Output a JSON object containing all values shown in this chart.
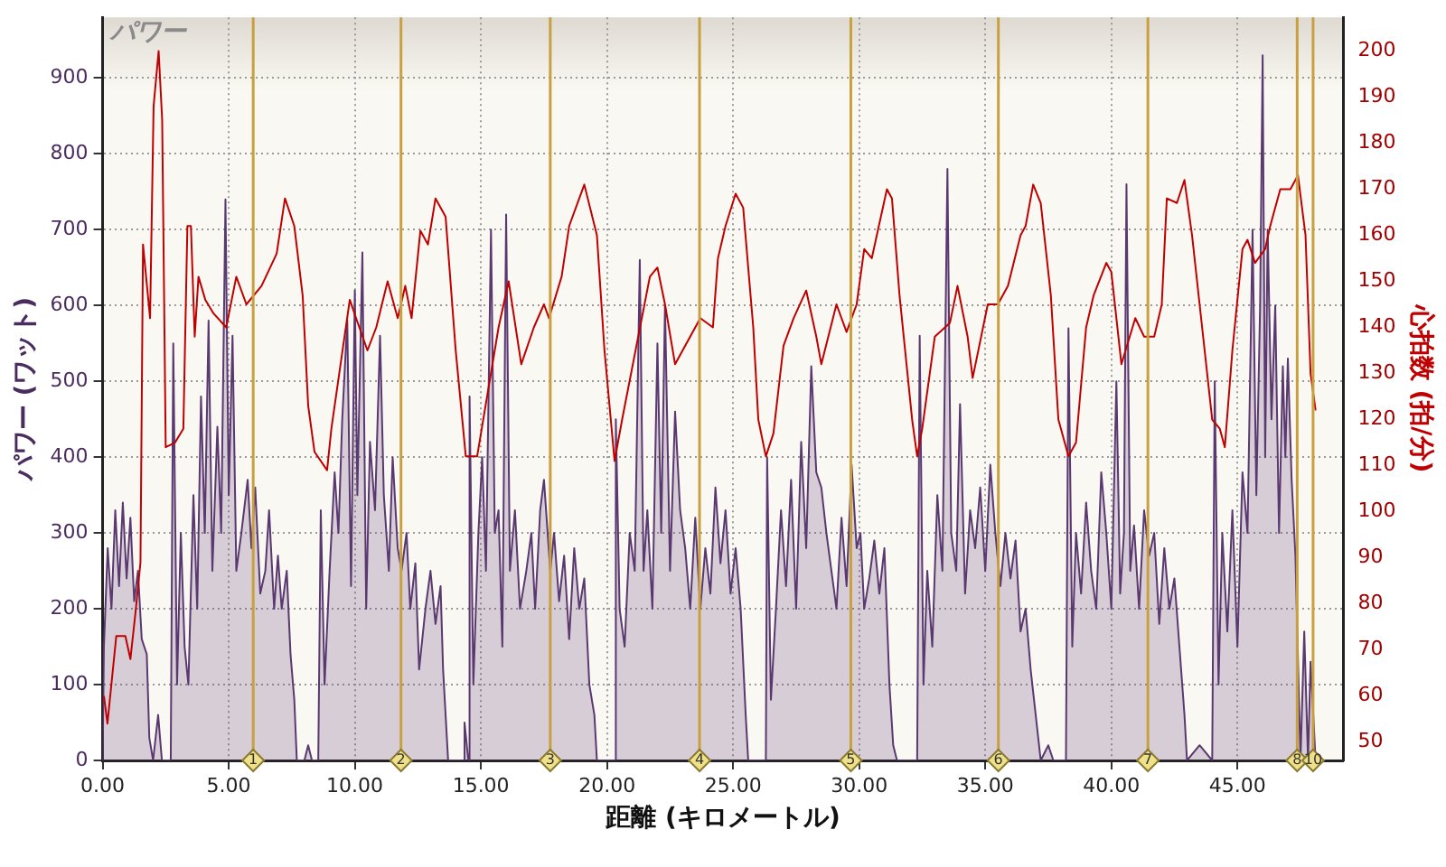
{
  "chart_data": {
    "type": "area",
    "title": "パワー",
    "xlabel": "距離 (キロメートル)",
    "ylabel": "パワー (ワット)",
    "y2label": "心拍数 (拍/分)",
    "xlim": [
      0,
      49.2
    ],
    "ylim": [
      0,
      980
    ],
    "y2lim": [
      46,
      207.3
    ],
    "xticks": [
      {
        "value": 0,
        "label": "0.00"
      },
      {
        "value": 5,
        "label": "5.00"
      },
      {
        "value": 10,
        "label": "10.00"
      },
      {
        "value": 15,
        "label": "15.00"
      },
      {
        "value": 20,
        "label": "20.00"
      },
      {
        "value": 25,
        "label": "25.00"
      },
      {
        "value": 30,
        "label": "30.00"
      },
      {
        "value": 35,
        "label": "35.00"
      },
      {
        "value": 40,
        "label": "40.00"
      },
      {
        "value": 45,
        "label": "45.00"
      }
    ],
    "yticks": [
      0,
      100,
      200,
      300,
      400,
      500,
      600,
      700,
      800,
      900
    ],
    "y2ticks": [
      50,
      60,
      70,
      80,
      90,
      100,
      110,
      120,
      130,
      140,
      150,
      160,
      170,
      180,
      190,
      200
    ],
    "grid": true,
    "marker": "none",
    "ref_lines": [
      {
        "axis": "x",
        "value": 5.97,
        "color": "#c8a040"
      },
      {
        "axis": "x",
        "value": 11.83,
        "color": "#c8a040"
      },
      {
        "axis": "x",
        "value": 17.75,
        "color": "#c8a040"
      },
      {
        "axis": "x",
        "value": 23.67,
        "color": "#c8a040"
      },
      {
        "axis": "x",
        "value": 29.67,
        "color": "#c8a040"
      },
      {
        "axis": "x",
        "value": 35.52,
        "color": "#c8a040"
      },
      {
        "axis": "x",
        "value": 41.45,
        "color": "#c8a040"
      },
      {
        "axis": "x",
        "value": 47.37,
        "color": "#c8a040"
      },
      {
        "axis": "x",
        "value": 48.0,
        "color": "#c8a040"
      }
    ],
    "annotations": [
      {
        "text": "1",
        "x": 5.97,
        "y": 0
      },
      {
        "text": "2",
        "x": 11.83,
        "y": 0
      },
      {
        "text": "3",
        "x": 17.75,
        "y": 0
      },
      {
        "text": "4",
        "x": 23.67,
        "y": 0
      },
      {
        "text": "5",
        "x": 29.67,
        "y": 0
      },
      {
        "text": "6",
        "x": 35.52,
        "y": 0
      },
      {
        "text": "7",
        "x": 41.45,
        "y": 0
      },
      {
        "text": "8",
        "x": 47.37,
        "y": 0
      },
      {
        "text": "10",
        "x": 48.0,
        "y": 0
      }
    ],
    "series": [
      {
        "type": "area",
        "color": "#5a3870",
        "x": [
          0,
          0.05,
          0.2,
          0.35,
          0.5,
          0.65,
          0.8,
          0.95,
          1.1,
          1.25,
          1.4,
          1.55,
          1.75,
          1.85,
          2.0,
          2.2,
          2.35,
          2.7,
          2.8,
          2.95,
          3.1,
          3.25,
          3.4,
          3.6,
          3.75,
          3.9,
          4.05,
          4.2,
          4.35,
          4.55,
          4.7,
          4.87,
          5.0,
          5.15,
          5.3,
          5.5,
          5.75,
          5.9,
          6.05,
          6.25,
          6.45,
          6.6,
          6.8,
          6.95,
          7.1,
          7.3,
          7.45,
          7.6,
          7.7,
          8.0,
          8.15,
          8.3,
          8.55,
          8.65,
          8.8,
          9.0,
          9.2,
          9.35,
          9.5,
          9.7,
          9.85,
          10.0,
          10.1,
          10.3,
          10.45,
          10.6,
          10.8,
          11.0,
          11.15,
          11.35,
          11.5,
          11.7,
          11.85,
          12.05,
          12.2,
          12.4,
          12.55,
          12.8,
          13.0,
          13.2,
          13.4,
          13.5,
          13.7,
          14.3,
          14.35,
          14.5,
          14.55,
          14.7,
          14.9,
          15.05,
          15.2,
          15.4,
          15.55,
          15.7,
          15.85,
          16.0,
          16.15,
          16.35,
          16.55,
          16.8,
          17.0,
          17.15,
          17.35,
          17.5,
          17.75,
          17.9,
          18.1,
          18.3,
          18.5,
          18.7,
          18.9,
          19.1,
          19.3,
          19.5,
          19.6,
          20.3,
          20.35,
          20.5,
          20.7,
          20.9,
          21.1,
          21.3,
          21.45,
          21.6,
          21.8,
          22.0,
          22.15,
          22.3,
          22.5,
          22.7,
          22.9,
          23.1,
          23.3,
          23.5,
          23.7,
          23.9,
          24.1,
          24.3,
          24.5,
          24.7,
          24.9,
          25.1,
          25.3,
          25.5,
          25.6,
          26.3,
          26.35,
          26.5,
          26.7,
          26.9,
          27.1,
          27.3,
          27.5,
          27.7,
          27.9,
          28.1,
          28.3,
          28.5,
          28.7,
          28.9,
          29.1,
          29.3,
          29.5,
          29.7,
          29.9,
          30.05,
          30.2,
          30.4,
          30.6,
          30.8,
          31.0,
          31.2,
          31.35,
          31.5,
          32.3,
          32.4,
          32.55,
          32.7,
          32.9,
          33.1,
          33.3,
          33.5,
          33.65,
          33.85,
          34.0,
          34.2,
          34.4,
          34.6,
          34.8,
          35.0,
          35.2,
          35.4,
          35.6,
          35.8,
          36.0,
          36.2,
          36.4,
          36.6,
          36.8,
          37.0,
          37.2,
          37.5,
          37.7,
          38.2,
          38.3,
          38.45,
          38.6,
          38.8,
          39.0,
          39.2,
          39.4,
          39.6,
          39.8,
          40.0,
          40.2,
          40.35,
          40.5,
          40.6,
          40.75,
          40.9,
          41.1,
          41.3,
          41.5,
          41.7,
          41.9,
          42.1,
          42.3,
          42.5,
          42.7,
          42.9,
          43.0,
          43.5,
          44.0,
          44.1,
          44.25,
          44.4,
          44.6,
          44.8,
          45.0,
          45.2,
          45.4,
          45.6,
          45.75,
          45.9,
          46.0,
          46.1,
          46.2,
          46.35,
          46.5,
          46.65,
          46.8,
          46.9,
          47.0,
          47.15,
          47.3,
          47.5,
          47.65,
          47.8,
          47.9,
          48.1
        ],
        "values": [
          0,
          150,
          280,
          200,
          330,
          230,
          340,
          240,
          320,
          210,
          250,
          160,
          140,
          30,
          0,
          60,
          0,
          0,
          550,
          100,
          300,
          150,
          100,
          350,
          200,
          480,
          300,
          580,
          250,
          440,
          300,
          740,
          350,
          560,
          250,
          300,
          370,
          280,
          360,
          220,
          250,
          330,
          200,
          270,
          200,
          250,
          140,
          80,
          0,
          0,
          20,
          0,
          0,
          330,
          100,
          250,
          380,
          300,
          450,
          580,
          230,
          620,
          350,
          670,
          200,
          420,
          330,
          560,
          350,
          250,
          400,
          280,
          250,
          300,
          200,
          260,
          120,
          200,
          250,
          180,
          230,
          120,
          0,
          0,
          50,
          0,
          480,
          100,
          300,
          400,
          250,
          700,
          300,
          330,
          150,
          720,
          250,
          330,
          200,
          250,
          300,
          200,
          330,
          370,
          250,
          300,
          210,
          270,
          160,
          280,
          200,
          240,
          100,
          60,
          0,
          0,
          450,
          200,
          150,
          300,
          250,
          660,
          250,
          330,
          200,
          550,
          300,
          600,
          250,
          460,
          330,
          280,
          200,
          320,
          200,
          280,
          220,
          360,
          260,
          330,
          220,
          280,
          200,
          60,
          0,
          0,
          400,
          80,
          200,
          330,
          230,
          370,
          200,
          420,
          280,
          520,
          380,
          360,
          300,
          250,
          200,
          320,
          230,
          390,
          280,
          300,
          200,
          240,
          290,
          220,
          280,
          100,
          20,
          0,
          0,
          560,
          100,
          250,
          150,
          350,
          250,
          780,
          300,
          250,
          470,
          220,
          330,
          280,
          360,
          250,
          390,
          300,
          230,
          300,
          240,
          290,
          170,
          200,
          120,
          60,
          0,
          20,
          0,
          0,
          570,
          150,
          300,
          220,
          340,
          250,
          200,
          380,
          300,
          200,
          500,
          220,
          300,
          760,
          250,
          310,
          200,
          330,
          270,
          300,
          180,
          280,
          200,
          240,
          150,
          60,
          0,
          20,
          0,
          500,
          100,
          300,
          170,
          330,
          150,
          380,
          300,
          700,
          350,
          600,
          930,
          400,
          700,
          450,
          600,
          300,
          520,
          400,
          530,
          370,
          270,
          0,
          170,
          0,
          130,
          0
        ]
      },
      {
        "type": "line",
        "axis": "y2",
        "color": "#c00000",
        "x": [
          0.05,
          0.19,
          0.54,
          0.9,
          1.1,
          1.3,
          1.5,
          1.6,
          1.88,
          2.02,
          2.22,
          2.36,
          2.45,
          2.5,
          2.87,
          3.2,
          3.36,
          3.5,
          3.65,
          3.8,
          4.07,
          4.4,
          4.9,
          5.3,
          5.7,
          6.3,
          6.9,
          7.23,
          7.6,
          7.93,
          8.15,
          8.4,
          8.9,
          9.07,
          9.8,
          10.05,
          10.5,
          10.85,
          11.3,
          11.7,
          12.0,
          12.25,
          12.6,
          12.9,
          13.2,
          13.6,
          14.0,
          14.4,
          14.85,
          15.7,
          16.1,
          16.6,
          17.1,
          17.5,
          17.7,
          18.2,
          18.5,
          19.1,
          19.6,
          19.9,
          20.3,
          20.6,
          21.7,
          22.0,
          22.3,
          22.7,
          23.7,
          24.2,
          24.4,
          24.7,
          25.1,
          25.4,
          25.8,
          26.0,
          26.3,
          26.6,
          27.0,
          27.4,
          27.9,
          28.3,
          28.5,
          29.1,
          29.5,
          29.9,
          30.2,
          30.5,
          31.1,
          31.3,
          31.6,
          32.1,
          32.3,
          32.5,
          33.0,
          33.6,
          33.9,
          34.3,
          34.5,
          35.1,
          35.5,
          35.9,
          36.4,
          36.6,
          36.9,
          37.2,
          37.6,
          37.9,
          38.3,
          38.6,
          39.0,
          39.3,
          39.8,
          40.0,
          40.4,
          40.95,
          41.3,
          41.7,
          42.0,
          42.2,
          42.6,
          42.9,
          43.2,
          43.6,
          44.0,
          44.3,
          44.5,
          44.8,
          45.2,
          45.4,
          45.7,
          46.1,
          46.3,
          46.7,
          47.1,
          47.4,
          47.7,
          47.9,
          48.1
        ],
        "values": [
          60,
          54,
          73,
          73,
          68,
          78,
          89,
          158,
          142,
          188,
          200,
          185,
          140,
          114,
          115,
          118,
          162,
          162,
          138,
          151,
          146,
          143,
          140,
          151,
          145,
          149,
          156,
          168,
          162,
          147,
          123,
          113,
          109,
          118,
          146,
          142,
          135,
          140,
          150,
          142,
          149,
          142,
          161,
          158,
          168,
          164,
          135,
          112,
          112,
          140,
          150,
          132,
          140,
          145,
          142,
          151,
          162,
          171,
          160,
          135,
          111,
          120,
          151,
          153,
          145,
          132,
          142,
          140,
          155,
          162,
          169,
          166,
          140,
          120,
          112,
          117,
          136,
          142,
          148,
          138,
          132,
          145,
          139,
          145,
          157,
          155,
          170,
          168,
          147,
          120,
          112,
          118,
          138,
          141,
          149,
          138,
          129,
          145,
          145,
          149,
          160,
          162,
          171,
          167,
          147,
          120,
          112,
          115,
          140,
          147,
          154,
          152,
          132,
          142,
          138,
          138,
          145,
          168,
          167,
          172,
          160,
          140,
          120,
          118,
          114,
          135,
          157,
          159,
          154,
          157,
          162,
          170,
          170,
          173,
          160,
          130,
          122
        ]
      }
    ]
  }
}
